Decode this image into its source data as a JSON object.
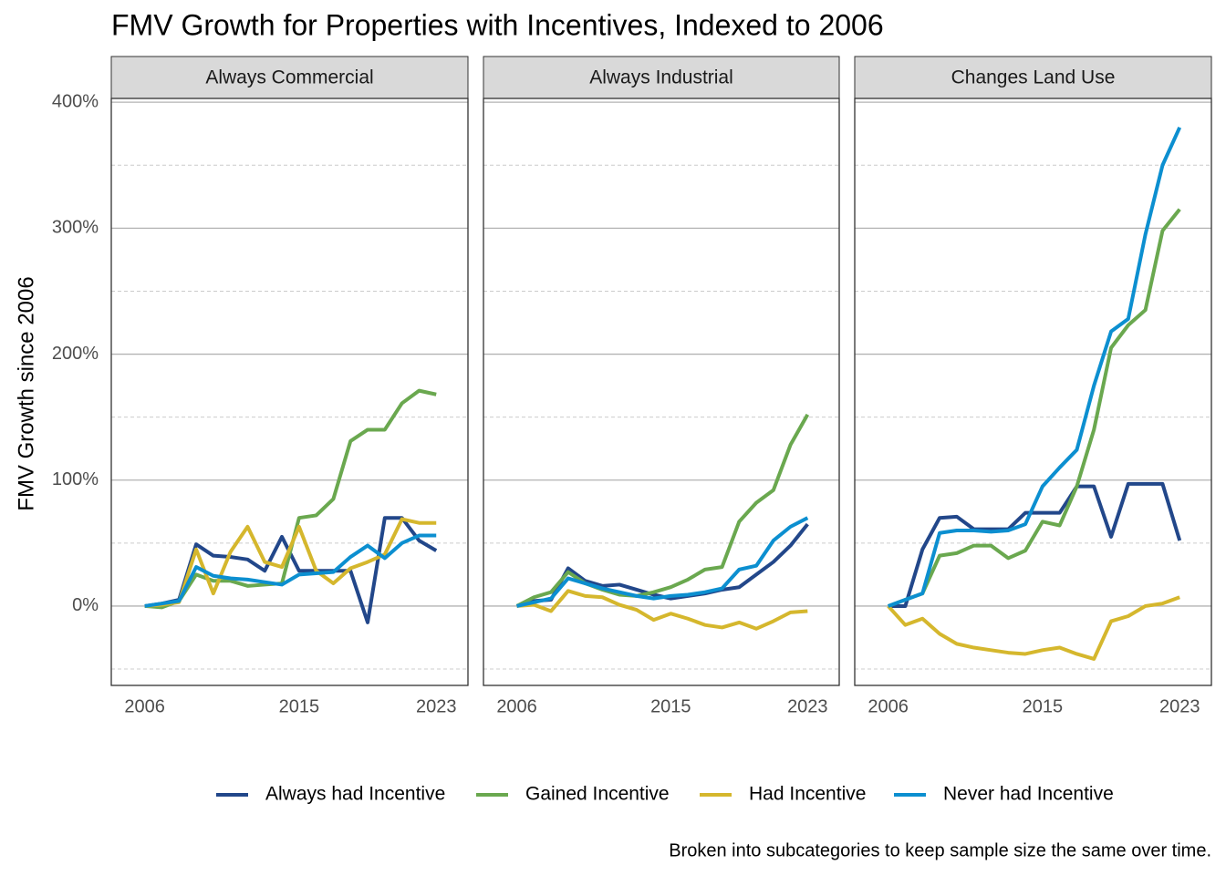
{
  "title": "FMV Growth for Properties with Incentives, Indexed to 2006",
  "y_axis_label": "FMV Growth since 2006",
  "caption": "Broken into subcategories to keep sample size the same over time.",
  "chart_data": [
    {
      "type": "line",
      "title": "Always Commercial",
      "x": [
        2006,
        2007,
        2008,
        2009,
        2010,
        2011,
        2012,
        2013,
        2014,
        2015,
        2016,
        2017,
        2018,
        2019,
        2020,
        2021,
        2022,
        2023
      ],
      "series": [
        {
          "name": "Always had Incentive",
          "color": "#22478a",
          "values": [
            0,
            2,
            5,
            49,
            40,
            39,
            37,
            28,
            55,
            28,
            28,
            28,
            28,
            -13,
            70,
            70,
            52,
            44
          ]
        },
        {
          "name": "Gained Incentive",
          "color": "#6aa84f",
          "values": [
            0,
            -1,
            4,
            25,
            20,
            20,
            16,
            17,
            18,
            70,
            72,
            85,
            131,
            140,
            140,
            161,
            171,
            168
          ]
        },
        {
          "name": "Had Incentive",
          "color": "#d5b72d",
          "values": [
            0,
            1,
            3,
            45,
            10,
            43,
            63,
            35,
            31,
            63,
            28,
            18,
            30,
            35,
            41,
            69,
            66,
            66
          ]
        },
        {
          "name": "Never had Incentive",
          "color": "#0c8fd0",
          "values": [
            0,
            2,
            4,
            31,
            24,
            22,
            21,
            19,
            17,
            25,
            26,
            27,
            39,
            48,
            38,
            50,
            56,
            56
          ]
        }
      ],
      "xlim": [
        2004.05,
        2024.85
      ],
      "xticks": [
        2006,
        2015,
        2023
      ],
      "ylim": [
        -63,
        403
      ],
      "yticks": [
        {
          "value": 0,
          "label": "0%"
        },
        {
          "value": 100,
          "label": "100%"
        },
        {
          "value": 200,
          "label": "200%"
        },
        {
          "value": 300,
          "label": "300%"
        },
        {
          "value": 400,
          "label": "400%"
        }
      ],
      "yminor": [
        -50,
        50,
        150,
        250,
        350
      ],
      "grid": true
    },
    {
      "type": "line",
      "title": "Always Industrial",
      "x": [
        2006,
        2007,
        2008,
        2009,
        2010,
        2011,
        2012,
        2013,
        2014,
        2015,
        2016,
        2017,
        2018,
        2019,
        2020,
        2021,
        2022,
        2023
      ],
      "series": [
        {
          "name": "Always had Incentive",
          "color": "#22478a",
          "values": [
            0,
            4,
            5,
            30,
            20,
            16,
            17,
            13,
            9,
            6,
            8,
            10,
            13,
            15,
            25,
            35,
            48,
            65
          ]
        },
        {
          "name": "Gained Incentive",
          "color": "#6aa84f",
          "values": [
            0,
            7,
            11,
            27,
            18,
            13,
            9,
            8,
            11,
            15,
            21,
            29,
            31,
            67,
            82,
            92,
            128,
            152
          ]
        },
        {
          "name": "Had Incentive",
          "color": "#d5b72d",
          "values": [
            0,
            1,
            -4,
            12,
            8,
            7,
            1,
            -3,
            -11,
            -6,
            -10,
            -15,
            -17,
            -13,
            -18,
            -12,
            -5,
            -4
          ]
        },
        {
          "name": "Never had Incentive",
          "color": "#0c8fd0",
          "values": [
            0,
            3,
            6,
            22,
            18,
            14,
            11,
            8,
            6,
            8,
            9,
            11,
            14,
            29,
            32,
            52,
            63,
            70
          ]
        }
      ],
      "xlim": [
        2004.05,
        2024.85
      ],
      "xticks": [
        2006,
        2015,
        2023
      ],
      "ylim": [
        -63,
        403
      ],
      "yticks": [
        {
          "value": 0,
          "label": "0%"
        },
        {
          "value": 100,
          "label": "100%"
        },
        {
          "value": 200,
          "label": "200%"
        },
        {
          "value": 300,
          "label": "300%"
        },
        {
          "value": 400,
          "label": "400%"
        }
      ],
      "yminor": [
        -50,
        50,
        150,
        250,
        350
      ],
      "grid": true
    },
    {
      "type": "line",
      "title": "Changes Land Use",
      "x": [
        2006,
        2007,
        2008,
        2009,
        2010,
        2011,
        2012,
        2013,
        2014,
        2015,
        2016,
        2017,
        2018,
        2019,
        2020,
        2021,
        2022,
        2023
      ],
      "series": [
        {
          "name": "Always had Incentive",
          "color": "#22478a",
          "values": [
            0,
            0,
            45,
            70,
            71,
            61,
            61,
            61,
            74,
            74,
            74,
            95,
            95,
            55,
            97,
            97,
            97,
            52
          ]
        },
        {
          "name": "Gained Incentive",
          "color": "#6aa84f",
          "values": [
            0,
            5,
            10,
            40,
            42,
            48,
            48,
            38,
            44,
            67,
            64,
            95,
            140,
            205,
            223,
            235,
            298,
            315
          ]
        },
        {
          "name": "Had Incentive",
          "color": "#d5b72d",
          "values": [
            0,
            -15,
            -10,
            -22,
            -30,
            -33,
            -35,
            -37,
            -38,
            -35,
            -33,
            -38,
            -42,
            -12,
            -8,
            0,
            2,
            7
          ]
        },
        {
          "name": "Never had Incentive",
          "color": "#0c8fd0",
          "values": [
            0,
            5,
            10,
            58,
            60,
            60,
            59,
            60,
            65,
            95,
            110,
            124,
            175,
            218,
            228,
            295,
            350,
            380
          ]
        }
      ],
      "xlim": [
        2004.05,
        2024.85
      ],
      "xticks": [
        2006,
        2015,
        2023
      ],
      "ylim": [
        -63,
        403
      ],
      "yticks": [
        {
          "value": 0,
          "label": "0%"
        },
        {
          "value": 100,
          "label": "100%"
        },
        {
          "value": 200,
          "label": "200%"
        },
        {
          "value": 300,
          "label": "300%"
        },
        {
          "value": 400,
          "label": "400%"
        }
      ],
      "yminor": [
        -50,
        50,
        150,
        250,
        350
      ],
      "grid": true
    }
  ]
}
